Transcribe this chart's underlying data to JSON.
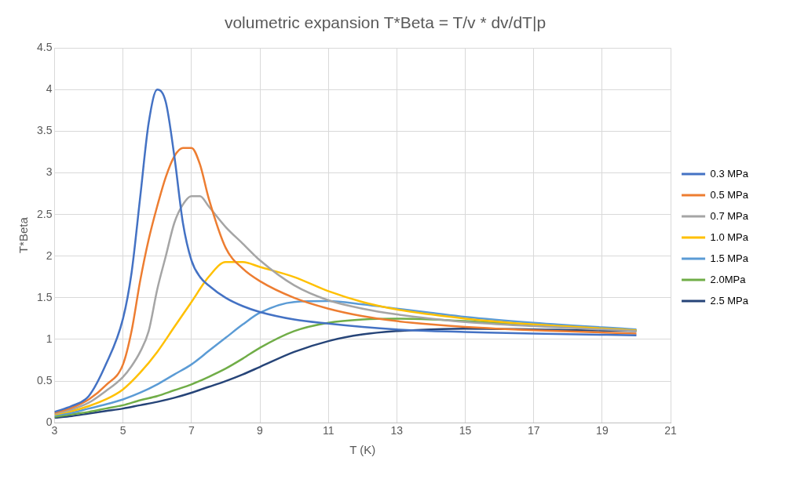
{
  "chart_data": {
    "type": "line",
    "title": "volumetric expansion T*Beta = T/v * dv/dT|p",
    "xlabel": "T (K)",
    "ylabel": "T*Beta",
    "xlim": [
      3,
      21
    ],
    "xticks": [
      3,
      5,
      7,
      9,
      11,
      13,
      15,
      17,
      19,
      21
    ],
    "ylim": [
      0,
      4.5
    ],
    "yticks": [
      0,
      0.5,
      1,
      1.5,
      2,
      2.5,
      3,
      3.5,
      4,
      4.5
    ],
    "grid": true,
    "legend": "right",
    "marker": "none",
    "line_style": "solid",
    "series": [
      {
        "name": "0.3 MPa",
        "color": "#4472c4",
        "x": [
          3,
          3.5,
          4,
          4.5,
          5,
          5.25,
          5.5,
          5.75,
          6,
          6.25,
          6.5,
          6.75,
          7,
          7.25,
          7.5,
          8,
          8.5,
          9,
          10,
          11,
          12,
          13,
          14,
          15,
          17,
          20
        ],
        "values": [
          0.13,
          0.2,
          0.32,
          0.7,
          1.25,
          1.8,
          2.7,
          3.6,
          4.0,
          3.85,
          3.2,
          2.4,
          1.95,
          1.75,
          1.65,
          1.5,
          1.4,
          1.33,
          1.24,
          1.19,
          1.15,
          1.12,
          1.1,
          1.09,
          1.07,
          1.05
        ]
      },
      {
        "name": "0.5 MPa",
        "color": "#ed7d31",
        "x": [
          3,
          3.5,
          4,
          4.5,
          5,
          5.25,
          5.5,
          5.75,
          6,
          6.25,
          6.5,
          6.75,
          7,
          7.25,
          7.5,
          8,
          8.5,
          9,
          10,
          11,
          12,
          13,
          14,
          15,
          17,
          20
        ],
        "values": [
          0.12,
          0.18,
          0.28,
          0.45,
          0.7,
          1.1,
          1.7,
          2.2,
          2.6,
          2.95,
          3.2,
          3.3,
          3.3,
          3.1,
          2.7,
          2.1,
          1.85,
          1.7,
          1.5,
          1.37,
          1.28,
          1.22,
          1.18,
          1.15,
          1.11,
          1.07
        ]
      },
      {
        "name": "0.7 MPa",
        "color": "#a5a5a5",
        "x": [
          3,
          3.5,
          4,
          4.5,
          5,
          5.25,
          5.5,
          5.75,
          6,
          6.25,
          6.5,
          6.75,
          7,
          7.25,
          7.5,
          8,
          8.5,
          9,
          10,
          11,
          12,
          13,
          14,
          15,
          17,
          20
        ],
        "values": [
          0.11,
          0.16,
          0.24,
          0.38,
          0.55,
          0.68,
          0.85,
          1.1,
          1.6,
          2.0,
          2.4,
          2.62,
          2.72,
          2.72,
          2.6,
          2.35,
          2.15,
          1.95,
          1.65,
          1.47,
          1.37,
          1.3,
          1.25,
          1.21,
          1.16,
          1.1
        ]
      },
      {
        "name": "1.0 MPa",
        "color": "#ffc000",
        "x": [
          3,
          3.5,
          4,
          4.5,
          5,
          5.5,
          6,
          6.5,
          7,
          7.5,
          8,
          8.5,
          9,
          10,
          11,
          12,
          13,
          14,
          15,
          17,
          20
        ],
        "values": [
          0.1,
          0.14,
          0.2,
          0.28,
          0.4,
          0.6,
          0.85,
          1.15,
          1.45,
          1.75,
          1.93,
          1.93,
          1.87,
          1.75,
          1.58,
          1.45,
          1.36,
          1.3,
          1.25,
          1.18,
          1.11
        ]
      },
      {
        "name": "1.5 MPa",
        "color": "#5b9bd5",
        "x": [
          3,
          3.5,
          4,
          4.5,
          5,
          5.5,
          6,
          6.5,
          7,
          7.5,
          8,
          8.5,
          9,
          10,
          11,
          12,
          13,
          14,
          15,
          17,
          20
        ],
        "values": [
          0.09,
          0.12,
          0.17,
          0.22,
          0.28,
          0.36,
          0.46,
          0.58,
          0.7,
          0.86,
          1.02,
          1.18,
          1.32,
          1.45,
          1.46,
          1.42,
          1.37,
          1.32,
          1.27,
          1.2,
          1.12
        ]
      },
      {
        "name": "2.0MPa",
        "color": "#70ad47",
        "x": [
          3,
          3.5,
          4,
          4.5,
          5,
          5.5,
          6,
          6.5,
          7,
          7.5,
          8,
          8.5,
          9,
          10,
          11,
          12,
          13,
          14,
          15,
          17,
          20
        ],
        "values": [
          0.07,
          0.1,
          0.13,
          0.17,
          0.21,
          0.27,
          0.32,
          0.39,
          0.46,
          0.55,
          0.65,
          0.77,
          0.9,
          1.1,
          1.2,
          1.24,
          1.25,
          1.24,
          1.22,
          1.17,
          1.11
        ]
      },
      {
        "name": "2.5 MPa",
        "color": "#264478",
        "x": [
          3,
          3.5,
          4,
          4.5,
          5,
          5.5,
          6,
          6.5,
          7,
          7.5,
          8,
          8.5,
          9,
          10,
          11,
          12,
          13,
          14,
          15,
          17,
          20
        ],
        "values": [
          0.06,
          0.08,
          0.11,
          0.14,
          0.17,
          0.21,
          0.25,
          0.3,
          0.36,
          0.43,
          0.5,
          0.58,
          0.67,
          0.85,
          0.98,
          1.06,
          1.1,
          1.12,
          1.13,
          1.12,
          1.1
        ]
      }
    ]
  }
}
